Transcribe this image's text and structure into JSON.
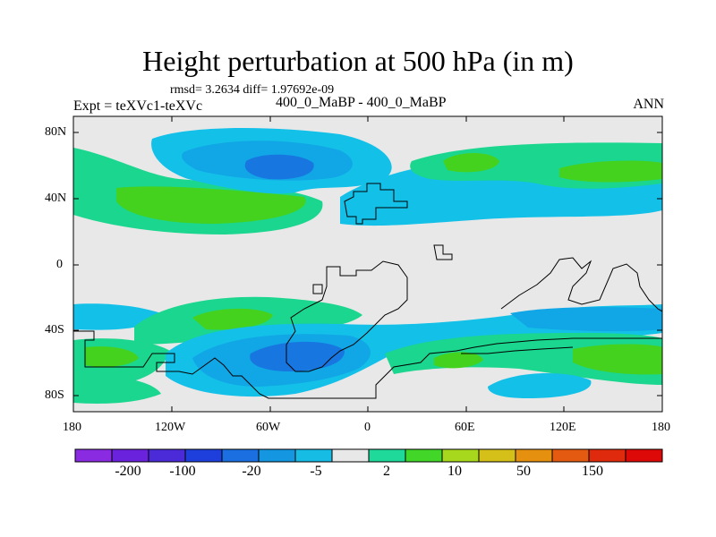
{
  "title": "Height perturbation at 500 hPa (in m)",
  "stats": "rmsd= 3.2634 diff= 1.97692e-09",
  "left_label": "Expt = teXVc1-teXVc",
  "center_label": "400_0_MaBP - 400_0_MaBP",
  "right_label": "ANN",
  "lat_ticks": [
    "80N",
    "40N",
    "0",
    "40S",
    "80S"
  ],
  "lon_ticks": [
    "180",
    "120W",
    "60W",
    "0",
    "60E",
    "120E",
    "180"
  ],
  "colorbar": {
    "colors": [
      "#8a2be2",
      "#6a22dd",
      "#4b2bd8",
      "#1e3fdb",
      "#1c6fe0",
      "#1596e0",
      "#17bce4",
      "#e8e8e8",
      "#1ed99a",
      "#42d628",
      "#a8d81e",
      "#d5c019",
      "#e5900f",
      "#e45a10",
      "#e02a0d",
      "#dd0909"
    ],
    "labels": [
      "-200",
      "-100",
      "-20",
      "-5",
      "2",
      "10",
      "50",
      "150"
    ]
  },
  "levels": {
    "blue_light": "#13c0e8",
    "blue_mid": "#11a6e6",
    "blue_dark": "#1776e0",
    "green_light": "#1bd68e",
    "green_mid": "#44d21e",
    "neutral": "#e8e8e8"
  }
}
